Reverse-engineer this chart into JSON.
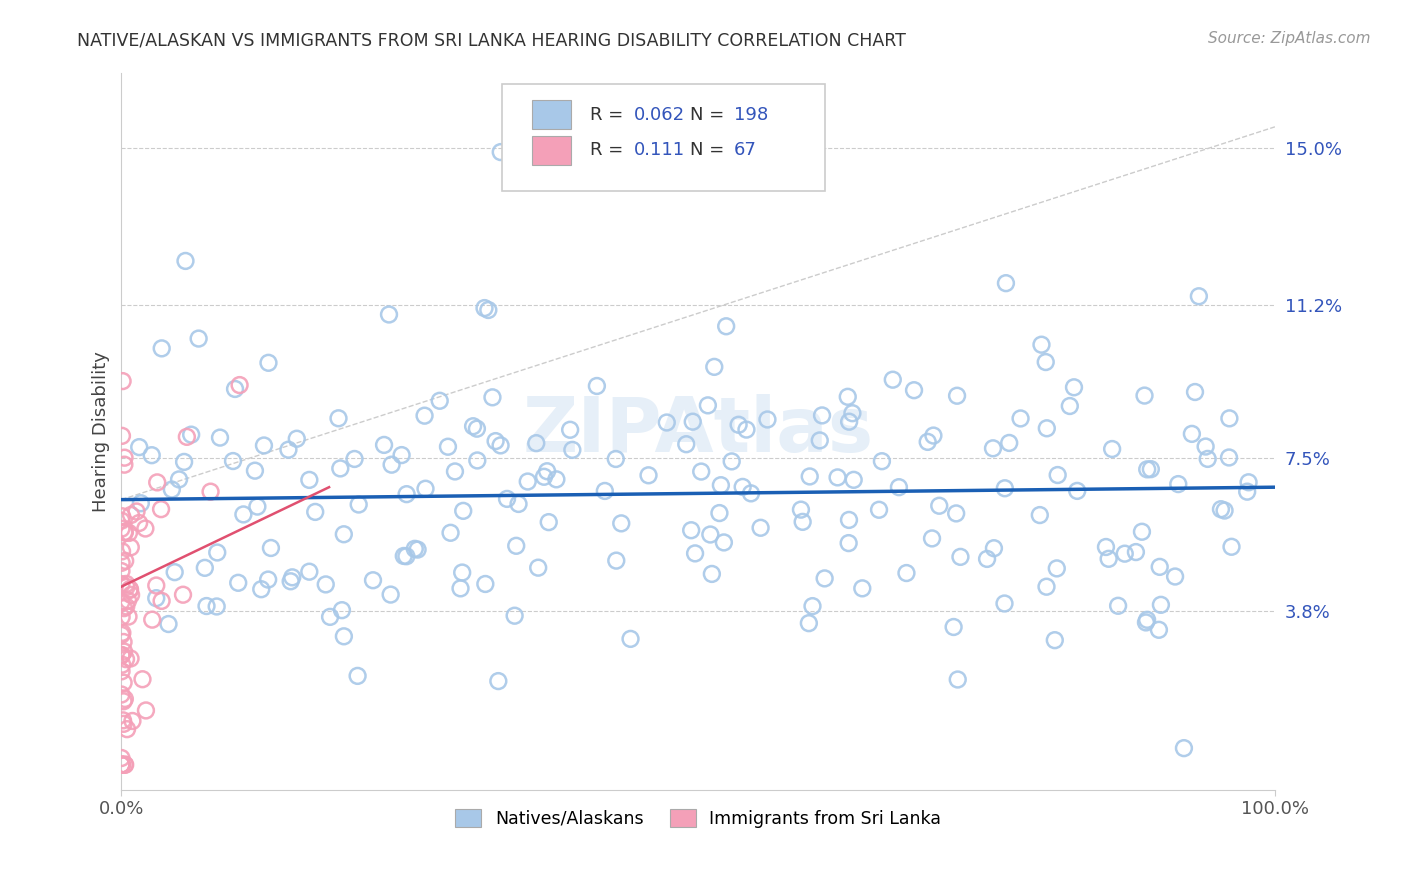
{
  "title": "NATIVE/ALASKAN VS IMMIGRANTS FROM SRI LANKA HEARING DISABILITY CORRELATION CHART",
  "source": "Source: ZipAtlas.com",
  "ylabel": "Hearing Disability",
  "xlim": [
    0,
    1.0
  ],
  "ylim": [
    -0.005,
    0.168
  ],
  "yticks": [
    0.038,
    0.075,
    0.112,
    0.15
  ],
  "ytick_labels": [
    "3.8%",
    "7.5%",
    "11.2%",
    "15.0%"
  ],
  "xticks": [
    0.0,
    1.0
  ],
  "xtick_labels": [
    "0.0%",
    "100.0%"
  ],
  "blue_R": 0.062,
  "blue_N": 198,
  "pink_R": 0.111,
  "pink_N": 67,
  "blue_color": "#a8c8e8",
  "pink_color": "#f4a0b8",
  "blue_line_color": "#1a5fb4",
  "pink_line_color": "#e05070",
  "gray_dash_color": "#cccccc",
  "legend_label_blue": "Natives/Alaskans",
  "legend_label_pink": "Immigrants from Sri Lanka",
  "watermark": "ZIPAtlas",
  "background_color": "#ffffff",
  "grid_color": "#cccccc",
  "title_color": "#333333",
  "source_color": "#999999",
  "value_color": "#3355bb",
  "blue_seed": 42,
  "pink_seed": 7
}
